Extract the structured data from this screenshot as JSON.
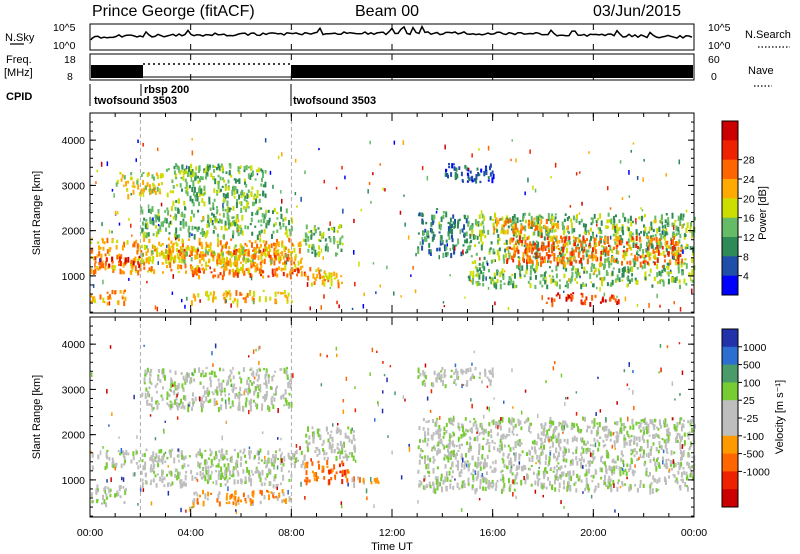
{
  "header": {
    "station": "Prince George (fitACF)",
    "beam": "Beam 00",
    "date": "03/Jun/2015"
  },
  "strip_labels": {
    "nsky": "N.Sky",
    "nsky_ticks": [
      "10^5",
      "10^0"
    ],
    "nsearch": "N.Search",
    "nsearch_ticks": [
      "10^5",
      "10^0"
    ],
    "freq": "Freq.",
    "freq_unit": "[MHz]",
    "freq_ticks": [
      "18",
      "8"
    ],
    "nave": "Nave",
    "nave_ticks": [
      "60",
      "0"
    ],
    "cpid": "CPID",
    "cpid_segments": [
      "twofsound 3503",
      "rbsp 200",
      "twofsound 3503"
    ]
  },
  "colors": {
    "power": [
      "#0000ff",
      "#1f4fa8",
      "#2e8b57",
      "#66bb66",
      "#ccdd00",
      "#ffaa00",
      "#ff6600",
      "#ee2200",
      "#cc0000"
    ],
    "velocity": [
      "#2233aa",
      "#2c6fd0",
      "#4a9a6a",
      "#77cc33",
      "#bebebe",
      "#bebebe",
      "#ff9900",
      "#ff6600",
      "#ee2200",
      "#cc0000"
    ]
  },
  "chart_data": [
    {
      "type": "heatmap",
      "panel": "power",
      "xlabel": "",
      "ylabel": "Slant Range [km]",
      "xlim_hours": [
        0,
        24
      ],
      "ylim_km": [
        180,
        4600
      ],
      "y_ticks": [
        "1000",
        "2000",
        "3000",
        "4000"
      ],
      "colorbar_label": "Power [dB]",
      "colorbar_ticks": [
        "4",
        "8",
        "12",
        "16",
        "20",
        "24",
        "28"
      ],
      "regions": [
        {
          "x0": 0.0,
          "x1": 8.5,
          "y0": 1100,
          "y1": 1850,
          "level": 5
        },
        {
          "x0": 0.0,
          "x1": 2.0,
          "y0": 1250,
          "y1": 1450,
          "level": 7
        },
        {
          "x0": 2.0,
          "x1": 7.8,
          "y0": 1350,
          "y1": 1700,
          "level": 4
        },
        {
          "x0": 3.0,
          "x1": 7.5,
          "y0": 1450,
          "y1": 1600,
          "level": 6
        },
        {
          "x0": 4.0,
          "x1": 8.5,
          "y0": 1000,
          "y1": 1200,
          "level": 6
        },
        {
          "x0": 8.5,
          "x1": 10.0,
          "y0": 850,
          "y1": 1200,
          "level": 5
        },
        {
          "x0": 8.5,
          "x1": 10.0,
          "y0": 1500,
          "y1": 2150,
          "level": 3
        },
        {
          "x0": 2.0,
          "x1": 8.0,
          "y0": 1900,
          "y1": 2550,
          "level": 3
        },
        {
          "x0": 3.0,
          "x1": 7.0,
          "y0": 2600,
          "y1": 3500,
          "level": 3
        },
        {
          "x0": 1.0,
          "x1": 3.0,
          "y0": 2800,
          "y1": 3300,
          "level": 4
        },
        {
          "x0": 4.0,
          "x1": 8.0,
          "y0": 450,
          "y1": 700,
          "level": 5
        },
        {
          "x0": 0.0,
          "x1": 1.5,
          "y0": 400,
          "y1": 700,
          "level": 5
        },
        {
          "x0": 13.0,
          "x1": 15.0,
          "y0": 1500,
          "y1": 2500,
          "level": 2
        },
        {
          "x0": 15.0,
          "x1": 24.0,
          "y0": 800,
          "y1": 2400,
          "level": 3
        },
        {
          "x0": 16.5,
          "x1": 23.5,
          "y0": 1300,
          "y1": 1900,
          "level": 6
        },
        {
          "x0": 18.0,
          "x1": 21.0,
          "y0": 400,
          "y1": 650,
          "level": 7
        },
        {
          "x0": 16.0,
          "x1": 19.0,
          "y0": 2000,
          "y1": 2300,
          "level": 5
        },
        {
          "x0": 14.0,
          "x1": 16.0,
          "y0": 3100,
          "y1": 3500,
          "level": 1
        }
      ]
    },
    {
      "type": "heatmap",
      "panel": "velocity",
      "xlabel": "Time UT",
      "ylabel": "Slant Range [km]",
      "xlim_hours": [
        0,
        24
      ],
      "ylim_km": [
        180,
        4600
      ],
      "y_ticks": [
        "1000",
        "2000",
        "3000",
        "4000"
      ],
      "x_ticks": [
        "00:00",
        "04:00",
        "08:00",
        "12:00",
        "16:00",
        "20:00",
        "00:00"
      ],
      "colorbar_label": "Velocity [m s⁻¹]",
      "colorbar_ticks": [
        "1000",
        "500",
        "100",
        "25",
        "-25",
        "-100",
        "-500",
        "-1000"
      ],
      "regions": [
        {
          "x0": 0.0,
          "x1": 8.5,
          "y0": 1300,
          "y1": 1700,
          "level": 4
        },
        {
          "x0": 2.0,
          "x1": 8.0,
          "y0": 900,
          "y1": 1300,
          "level": 4
        },
        {
          "x0": 0.0,
          "x1": 1.5,
          "y0": 500,
          "y1": 900,
          "level": 4
        },
        {
          "x0": 4.0,
          "x1": 8.0,
          "y0": 500,
          "y1": 800,
          "level": 6
        },
        {
          "x0": 8.5,
          "x1": 10.3,
          "y0": 1000,
          "y1": 1450,
          "level": 7
        },
        {
          "x0": 10.3,
          "x1": 11.5,
          "y0": 950,
          "y1": 1150,
          "level": 6
        },
        {
          "x0": 8.5,
          "x1": 10.5,
          "y0": 1500,
          "y1": 2200,
          "level": 4
        },
        {
          "x0": 2.0,
          "x1": 8.0,
          "y0": 2600,
          "y1": 3500,
          "level": 4
        },
        {
          "x0": 13.0,
          "x1": 24.0,
          "y0": 800,
          "y1": 2400,
          "level": 4
        },
        {
          "x0": 13.0,
          "x1": 16.0,
          "y0": 3100,
          "y1": 3500,
          "level": 4
        }
      ]
    }
  ]
}
